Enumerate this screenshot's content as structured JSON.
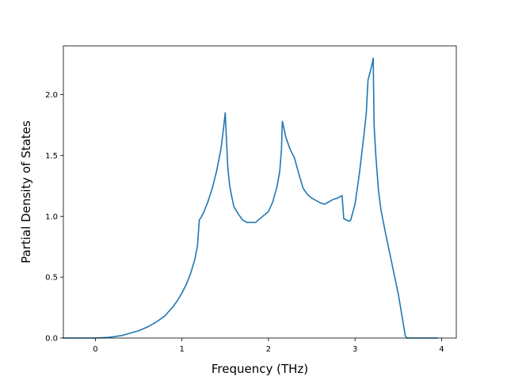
{
  "chart_data": {
    "type": "line",
    "title": "",
    "xlabel": "Frequency (THz)",
    "ylabel": "Partial Density of States",
    "xlim": [
      -0.37,
      4.17
    ],
    "ylim": [
      0,
      2.4
    ],
    "xticks": [
      0,
      1,
      2,
      3,
      4
    ],
    "xtick_labels": [
      "0",
      "1",
      "2",
      "3",
      "4"
    ],
    "yticks": [
      0.0,
      0.5,
      1.0,
      1.5,
      2.0
    ],
    "ytick_labels": [
      "0.0",
      "0.5",
      "1.0",
      "1.5",
      "2.0"
    ],
    "grid": false,
    "legend": "none",
    "series": [
      {
        "color": "#1f77b4",
        "x": [
          -0.37,
          -0.2,
          0.0,
          0.15,
          0.25,
          0.3,
          0.4,
          0.5,
          0.6,
          0.7,
          0.8,
          0.9,
          0.95,
          1.0,
          1.05,
          1.1,
          1.15,
          1.18,
          1.2,
          1.22,
          1.25,
          1.3,
          1.35,
          1.4,
          1.45,
          1.48,
          1.5,
          1.51,
          1.53,
          1.55,
          1.57,
          1.6,
          1.65,
          1.7,
          1.75,
          1.8,
          1.85,
          1.9,
          2.0,
          2.05,
          2.1,
          2.13,
          2.15,
          2.16,
          2.18,
          2.2,
          2.25,
          2.3,
          2.35,
          2.4,
          2.45,
          2.5,
          2.55,
          2.6,
          2.65,
          2.7,
          2.75,
          2.8,
          2.85,
          2.87,
          2.9,
          2.93,
          2.95,
          3.0,
          3.05,
          3.1,
          3.13,
          3.15,
          3.18,
          3.2,
          3.21,
          3.22,
          3.24,
          3.27,
          3.3,
          3.35,
          3.4,
          3.45,
          3.5,
          3.55,
          3.58,
          3.6,
          3.62,
          3.7,
          3.8,
          3.95
        ],
        "y": [
          0.0,
          0.0,
          0.0,
          0.005,
          0.015,
          0.02,
          0.04,
          0.06,
          0.09,
          0.13,
          0.18,
          0.26,
          0.31,
          0.37,
          0.44,
          0.53,
          0.65,
          0.76,
          0.97,
          0.99,
          1.03,
          1.12,
          1.23,
          1.37,
          1.55,
          1.72,
          1.85,
          1.7,
          1.4,
          1.26,
          1.18,
          1.08,
          1.02,
          0.97,
          0.95,
          0.95,
          0.95,
          0.98,
          1.04,
          1.12,
          1.25,
          1.37,
          1.55,
          1.78,
          1.72,
          1.65,
          1.55,
          1.48,
          1.35,
          1.23,
          1.18,
          1.15,
          1.13,
          1.11,
          1.1,
          1.12,
          1.14,
          1.15,
          1.17,
          0.98,
          0.97,
          0.96,
          0.97,
          1.1,
          1.35,
          1.65,
          1.85,
          2.12,
          2.2,
          2.26,
          2.3,
          1.75,
          1.5,
          1.22,
          1.05,
          0.87,
          0.7,
          0.53,
          0.36,
          0.15,
          0.02,
          0.0,
          0.0,
          0.0,
          0.0,
          0.0
        ]
      }
    ]
  }
}
